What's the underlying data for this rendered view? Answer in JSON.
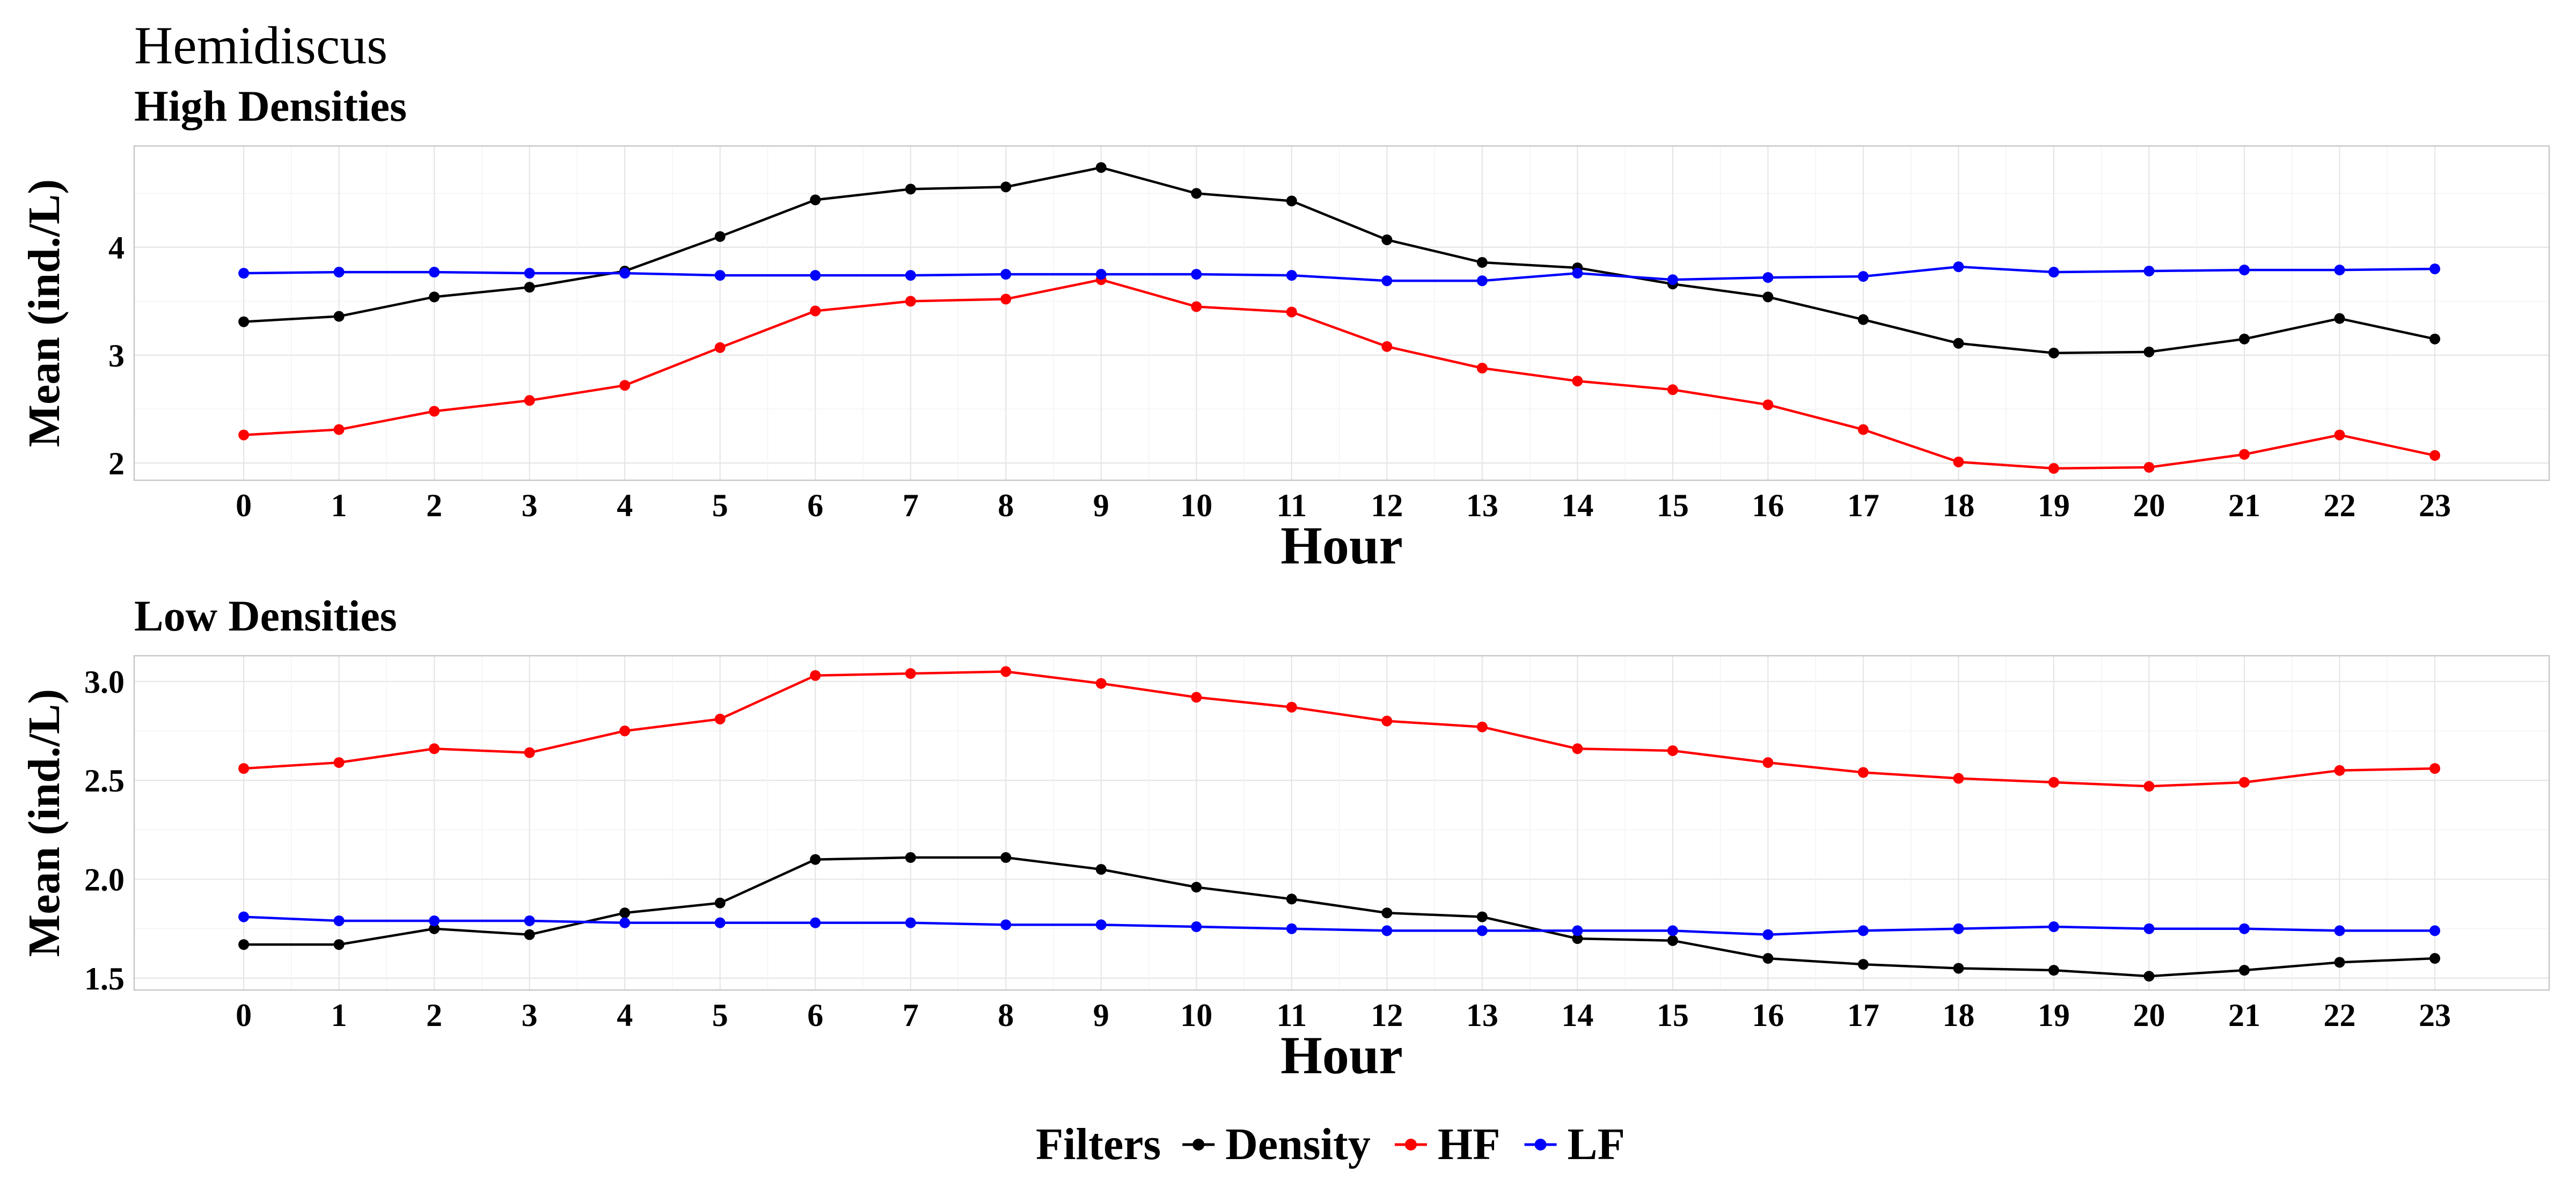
{
  "figure": {
    "title": "Hemidiscus"
  },
  "legend": {
    "title": "Filters",
    "position": "bottom",
    "items": [
      {
        "label": "Density",
        "color": "#000000"
      },
      {
        "label": "HF",
        "color": "#ff0000"
      },
      {
        "label": "LF",
        "color": "#0000ff"
      }
    ]
  },
  "chart_data": [
    {
      "type": "line",
      "title": "High Densities",
      "xlabel": "Hour",
      "ylabel": "Mean (ind./L)",
      "x": [
        0,
        1,
        2,
        3,
        4,
        5,
        6,
        7,
        8,
        9,
        10,
        11,
        12,
        13,
        14,
        15,
        16,
        17,
        18,
        19,
        20,
        21,
        22,
        23
      ],
      "ylim": [
        1.84,
        4.94
      ],
      "yticks": [
        2,
        3,
        4
      ],
      "ytick_labels": [
        "2",
        "3",
        "4"
      ],
      "grid": true,
      "series": [
        {
          "name": "Density",
          "color": "#000000",
          "values": [
            3.31,
            3.36,
            3.54,
            3.63,
            3.78,
            4.1,
            4.44,
            4.54,
            4.56,
            4.74,
            4.5,
            4.43,
            4.07,
            3.86,
            3.81,
            3.66,
            3.54,
            3.33,
            3.11,
            3.02,
            3.03,
            3.15,
            3.34,
            3.15
          ]
        },
        {
          "name": "HF",
          "color": "#ff0000",
          "values": [
            2.26,
            2.31,
            2.48,
            2.58,
            2.72,
            3.07,
            3.41,
            3.5,
            3.52,
            3.7,
            3.45,
            3.4,
            3.08,
            2.88,
            2.76,
            2.68,
            2.54,
            2.31,
            2.01,
            1.95,
            1.96,
            2.08,
            2.26,
            2.07
          ]
        },
        {
          "name": "LF",
          "color": "#0000ff",
          "values": [
            3.76,
            3.77,
            3.77,
            3.76,
            3.76,
            3.74,
            3.74,
            3.74,
            3.75,
            3.75,
            3.75,
            3.74,
            3.69,
            3.69,
            3.76,
            3.7,
            3.72,
            3.73,
            3.82,
            3.77,
            3.78,
            3.79,
            3.79,
            3.8
          ]
        }
      ]
    },
    {
      "type": "line",
      "title": "Low Densities",
      "xlabel": "Hour",
      "ylabel": "Mean (ind./L)",
      "x": [
        0,
        1,
        2,
        3,
        4,
        5,
        6,
        7,
        8,
        9,
        10,
        11,
        12,
        13,
        14,
        15,
        16,
        17,
        18,
        19,
        20,
        21,
        22,
        23
      ],
      "ylim": [
        1.44,
        3.13
      ],
      "yticks": [
        1.5,
        2.0,
        2.5,
        3.0
      ],
      "ytick_labels": [
        "1.5",
        "2.0",
        "2.5",
        "3.0"
      ],
      "grid": true,
      "series": [
        {
          "name": "Density",
          "color": "#000000",
          "values": [
            1.67,
            1.67,
            1.75,
            1.72,
            1.83,
            1.88,
            2.1,
            2.11,
            2.11,
            2.05,
            1.96,
            1.9,
            1.83,
            1.81,
            1.7,
            1.69,
            1.6,
            1.57,
            1.55,
            1.54,
            1.51,
            1.54,
            1.58,
            1.6
          ]
        },
        {
          "name": "HF",
          "color": "#ff0000",
          "values": [
            2.56,
            2.59,
            2.66,
            2.64,
            2.75,
            2.81,
            3.03,
            3.04,
            3.05,
            2.99,
            2.92,
            2.87,
            2.8,
            2.77,
            2.66,
            2.65,
            2.59,
            2.54,
            2.51,
            2.49,
            2.47,
            2.49,
            2.55,
            2.56
          ]
        },
        {
          "name": "LF",
          "color": "#0000ff",
          "values": [
            1.81,
            1.79,
            1.79,
            1.79,
            1.78,
            1.78,
            1.78,
            1.78,
            1.77,
            1.77,
            1.76,
            1.75,
            1.74,
            1.74,
            1.74,
            1.74,
            1.72,
            1.74,
            1.75,
            1.76,
            1.75,
            1.75,
            1.74,
            1.74
          ]
        }
      ]
    }
  ]
}
